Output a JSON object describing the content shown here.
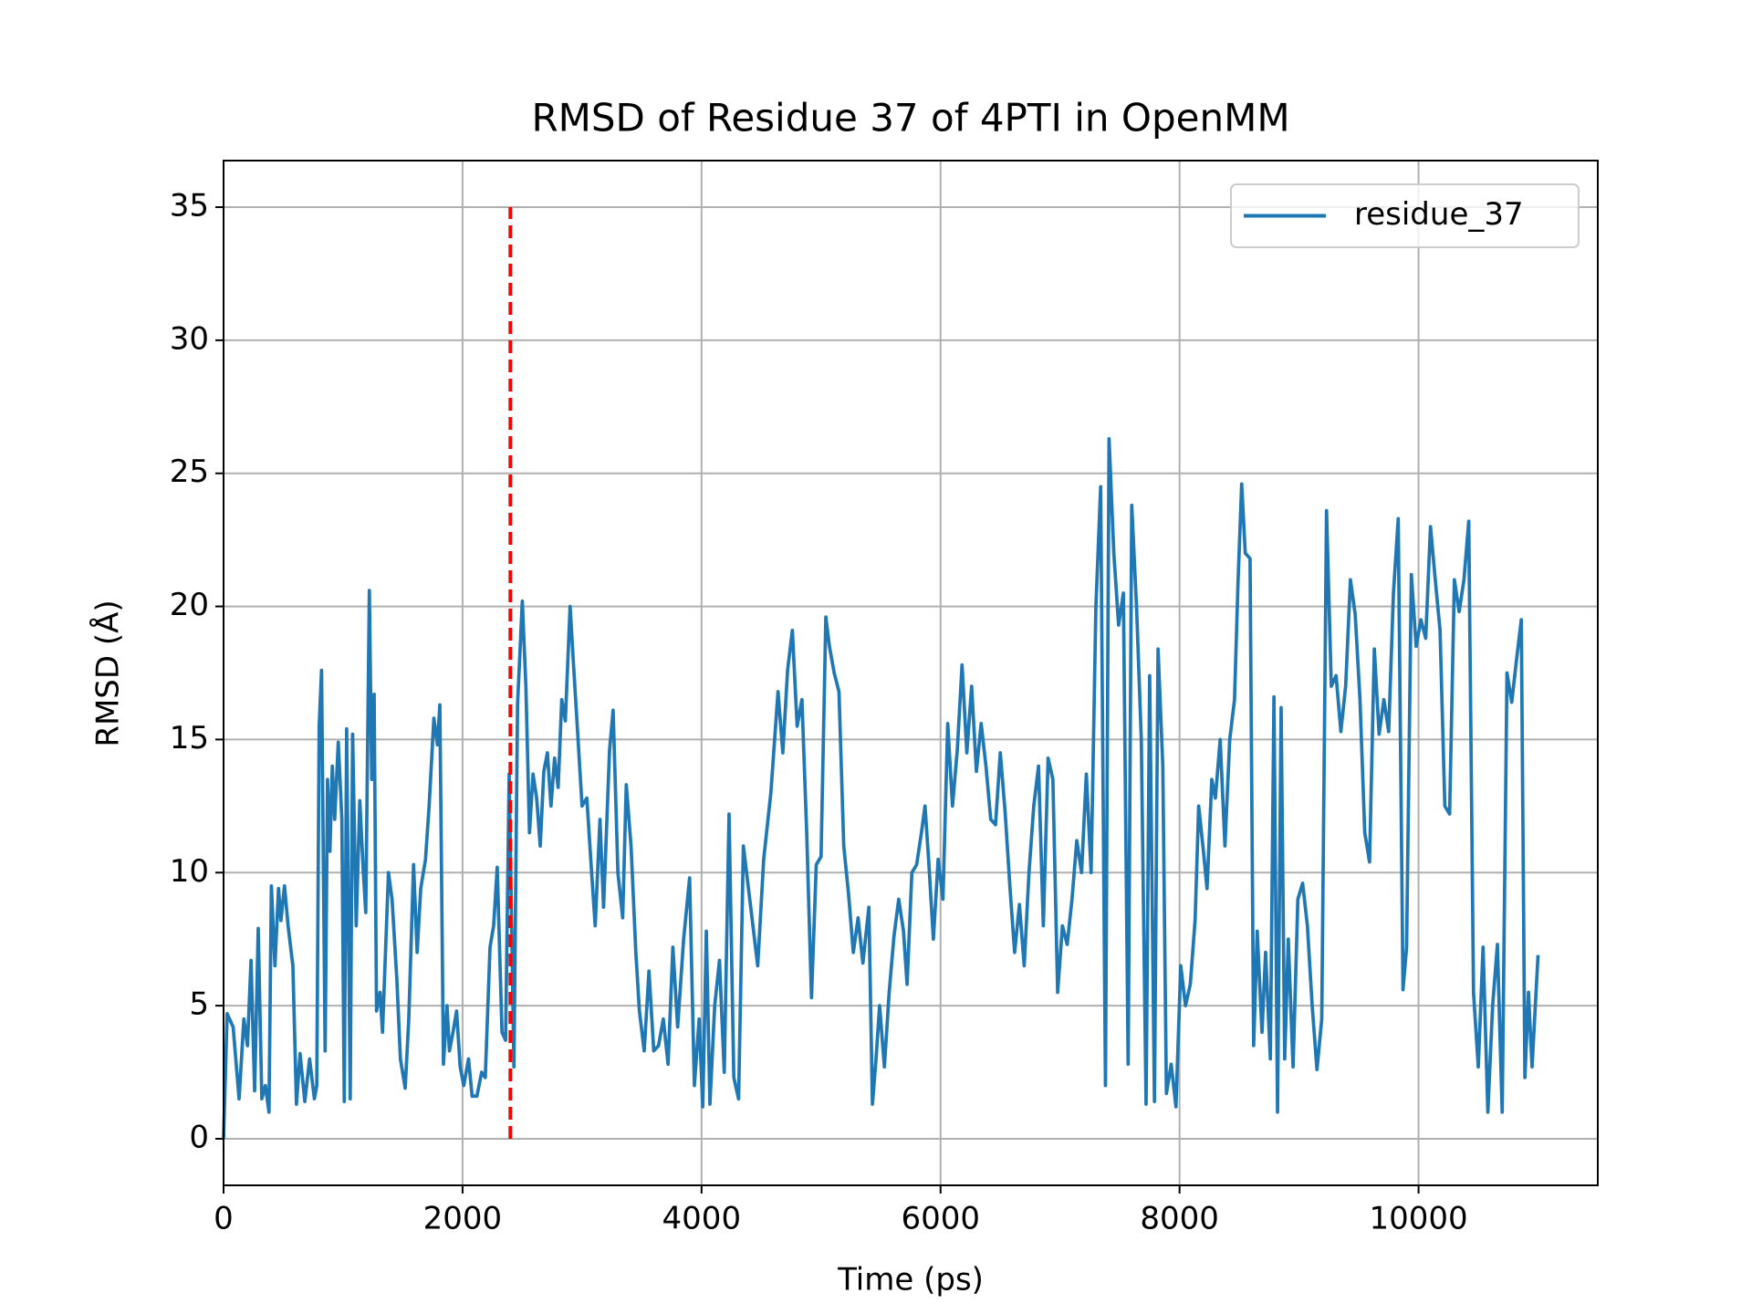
{
  "chart_data": {
    "type": "line",
    "title": "RMSD of Residue 37 of 4PTI in OpenMM",
    "x_label": "Time (ps)",
    "y_label": "RMSD (Å)",
    "xlim": [
      0,
      11500
    ],
    "ylim": [
      -1.75,
      36.75
    ],
    "xticks": [
      0,
      2000,
      4000,
      6000,
      8000,
      10000
    ],
    "yticks": [
      0,
      5,
      10,
      15,
      20,
      25,
      30,
      35
    ],
    "grid": true,
    "legend": "upper right",
    "vline": {
      "x": 2400,
      "ymin": 0,
      "ymax": 35,
      "color": "#ff0000",
      "linestyle": "dashed"
    },
    "x": [
      0,
      30,
      80,
      130,
      170,
      200,
      230,
      260,
      290,
      320,
      350,
      380,
      400,
      430,
      460,
      480,
      510,
      540,
      580,
      610,
      640,
      680,
      720,
      760,
      780,
      800,
      820,
      850,
      870,
      890,
      910,
      930,
      960,
      990,
      1010,
      1030,
      1060,
      1080,
      1110,
      1140,
      1170,
      1190,
      1220,
      1240,
      1260,
      1280,
      1310,
      1330,
      1380,
      1410,
      1450,
      1480,
      1520,
      1550,
      1590,
      1620,
      1650,
      1690,
      1720,
      1760,
      1790,
      1810,
      1840,
      1870,
      1890,
      1920,
      1950,
      1980,
      2010,
      2050,
      2080,
      2120,
      2160,
      2190,
      2230,
      2260,
      2290,
      2330,
      2360,
      2390,
      2430,
      2460,
      2500,
      2530,
      2560,
      2590,
      2620,
      2650,
      2680,
      2710,
      2740,
      2770,
      2800,
      2830,
      2860,
      2900,
      2930,
      2960,
      3000,
      3040,
      3080,
      3110,
      3150,
      3180,
      3230,
      3260,
      3300,
      3340,
      3370,
      3410,
      3450,
      3480,
      3520,
      3560,
      3600,
      3640,
      3680,
      3720,
      3760,
      3800,
      3850,
      3900,
      3940,
      3980,
      4010,
      4040,
      4070,
      4110,
      4150,
      4190,
      4230,
      4270,
      4310,
      4350,
      4390,
      4430,
      4470,
      4520,
      4580,
      4640,
      4680,
      4720,
      4760,
      4800,
      4840,
      4880,
      4920,
      4960,
      5000,
      5040,
      5070,
      5110,
      5150,
      5190,
      5230,
      5270,
      5310,
      5350,
      5400,
      5430,
      5460,
      5490,
      5530,
      5570,
      5610,
      5650,
      5690,
      5720,
      5760,
      5800,
      5840,
      5870,
      5900,
      5940,
      5980,
      6020,
      6060,
      6100,
      6140,
      6180,
      6220,
      6260,
      6300,
      6340,
      6380,
      6420,
      6460,
      6500,
      6540,
      6580,
      6620,
      6660,
      6700,
      6740,
      6780,
      6820,
      6860,
      6900,
      6940,
      6980,
      7020,
      7060,
      7100,
      7140,
      7180,
      7220,
      7260,
      7300,
      7340,
      7380,
      7410,
      7450,
      7490,
      7530,
      7570,
      7600,
      7640,
      7680,
      7720,
      7750,
      7790,
      7820,
      7860,
      7890,
      7930,
      7970,
      8010,
      8050,
      8090,
      8130,
      8160,
      8200,
      8230,
      8270,
      8300,
      8340,
      8380,
      8420,
      8460,
      8490,
      8520,
      8550,
      8590,
      8620,
      8650,
      8690,
      8720,
      8760,
      8790,
      8820,
      8850,
      8880,
      8910,
      8950,
      8990,
      9030,
      9070,
      9110,
      9150,
      9190,
      9230,
      9270,
      9310,
      9350,
      9390,
      9430,
      9470,
      9510,
      9550,
      9590,
      9630,
      9670,
      9710,
      9750,
      9790,
      9830,
      9870,
      9900,
      9940,
      9980,
      10020,
      10060,
      10100,
      10140,
      10180,
      10220,
      10260,
      10300,
      10340,
      10380,
      10420,
      10460,
      10500,
      10540,
      10580,
      10620,
      10660,
      10700,
      10740,
      10780,
      10820,
      10860,
      10890,
      10920,
      10950,
      11000
    ],
    "series": [
      {
        "name": "residue_37",
        "color": "#1f77b4",
        "values": [
          0,
          4.7,
          4.2,
          1.5,
          4.5,
          3.5,
          6.7,
          1.8,
          7.9,
          1.5,
          2,
          1,
          9.5,
          6.5,
          9.4,
          8.2,
          9.5,
          8,
          6.5,
          1.3,
          3.2,
          1.4,
          3,
          1.5,
          2,
          15.5,
          17.6,
          3.3,
          13.5,
          10.8,
          14,
          12,
          14.9,
          12,
          1.4,
          15.4,
          1.5,
          15.2,
          8,
          12.7,
          10,
          8.5,
          20.6,
          13.5,
          16.7,
          4.8,
          5.5,
          4,
          10,
          9,
          6,
          3,
          1.9,
          4.5,
          10.3,
          7,
          9.4,
          10.5,
          12.5,
          15.8,
          14.8,
          16.3,
          2.8,
          5,
          3.3,
          4,
          4.8,
          2.7,
          2,
          3,
          1.6,
          1.6,
          2.5,
          2.3,
          7.2,
          8,
          10.2,
          4,
          3.7,
          13.7,
          2.7,
          16.3,
          20.2,
          17,
          11.5,
          13.7,
          12.8,
          11,
          13.8,
          14.5,
          12.5,
          14.3,
          13.2,
          16.5,
          15.7,
          20,
          17.7,
          15.5,
          12.5,
          12.8,
          10,
          8,
          12,
          8.7,
          14.6,
          16.1,
          10,
          8.3,
          13.3,
          11,
          7,
          4.8,
          3.3,
          6.3,
          3.3,
          3.5,
          4.5,
          2.8,
          7.2,
          4.2,
          7.5,
          9.8,
          2,
          4.5,
          1.2,
          7.8,
          1.3,
          5,
          6.7,
          2.5,
          12.2,
          2.3,
          1.5,
          11,
          9.5,
          8,
          6.5,
          10.5,
          13,
          16.8,
          14.5,
          17.6,
          19.1,
          15.5,
          16.5,
          11.5,
          5.3,
          10.3,
          10.6,
          19.6,
          18.5,
          17.5,
          16.8,
          11,
          9.2,
          7,
          8.3,
          6.6,
          8.7,
          1.3,
          3,
          5,
          2.7,
          5.5,
          7.6,
          9,
          7.8,
          5.8,
          10,
          10.3,
          11.5,
          12.5,
          10.5,
          7.5,
          10.5,
          9,
          15.6,
          12.5,
          14.6,
          17.8,
          14.5,
          17,
          13.8,
          15.6,
          14,
          12,
          11.8,
          14.5,
          12.3,
          9.5,
          7,
          8.8,
          6.5,
          10,
          12.5,
          14,
          8,
          14.3,
          13.5,
          5.5,
          8,
          7.3,
          9,
          11.2,
          10,
          13.7,
          10,
          20,
          24.5,
          2,
          26.3,
          22,
          19.3,
          20.5,
          2.8,
          23.8,
          20,
          15,
          1.3,
          17.4,
          1.4,
          18.4,
          14,
          1.7,
          2.8,
          1.2,
          6.5,
          5,
          5.8,
          8.2,
          12.5,
          10.8,
          9.4,
          13.5,
          12.8,
          15,
          11,
          15,
          16.5,
          21,
          24.6,
          22,
          21.8,
          3.5,
          7.8,
          4,
          7,
          3,
          16.6,
          1,
          16.2,
          3,
          7.5,
          2.7,
          9,
          9.6,
          8,
          5,
          2.6,
          4.5,
          23.6,
          17,
          17.4,
          15.3,
          17,
          21,
          19.7,
          16.5,
          11.5,
          10.4,
          18.4,
          15.2,
          16.5,
          15.3,
          20.5,
          23.3,
          5.6,
          7.2,
          21.2,
          18.5,
          19.5,
          18.8,
          23,
          21,
          19.1,
          12.5,
          12.2,
          21,
          19.8,
          21,
          23.2,
          5.5,
          2.7,
          7.2,
          1,
          5,
          7.3,
          1,
          17.5,
          16.4,
          18,
          19.5,
          2.3,
          5.5,
          2.7,
          6.9
        ]
      }
    ]
  }
}
